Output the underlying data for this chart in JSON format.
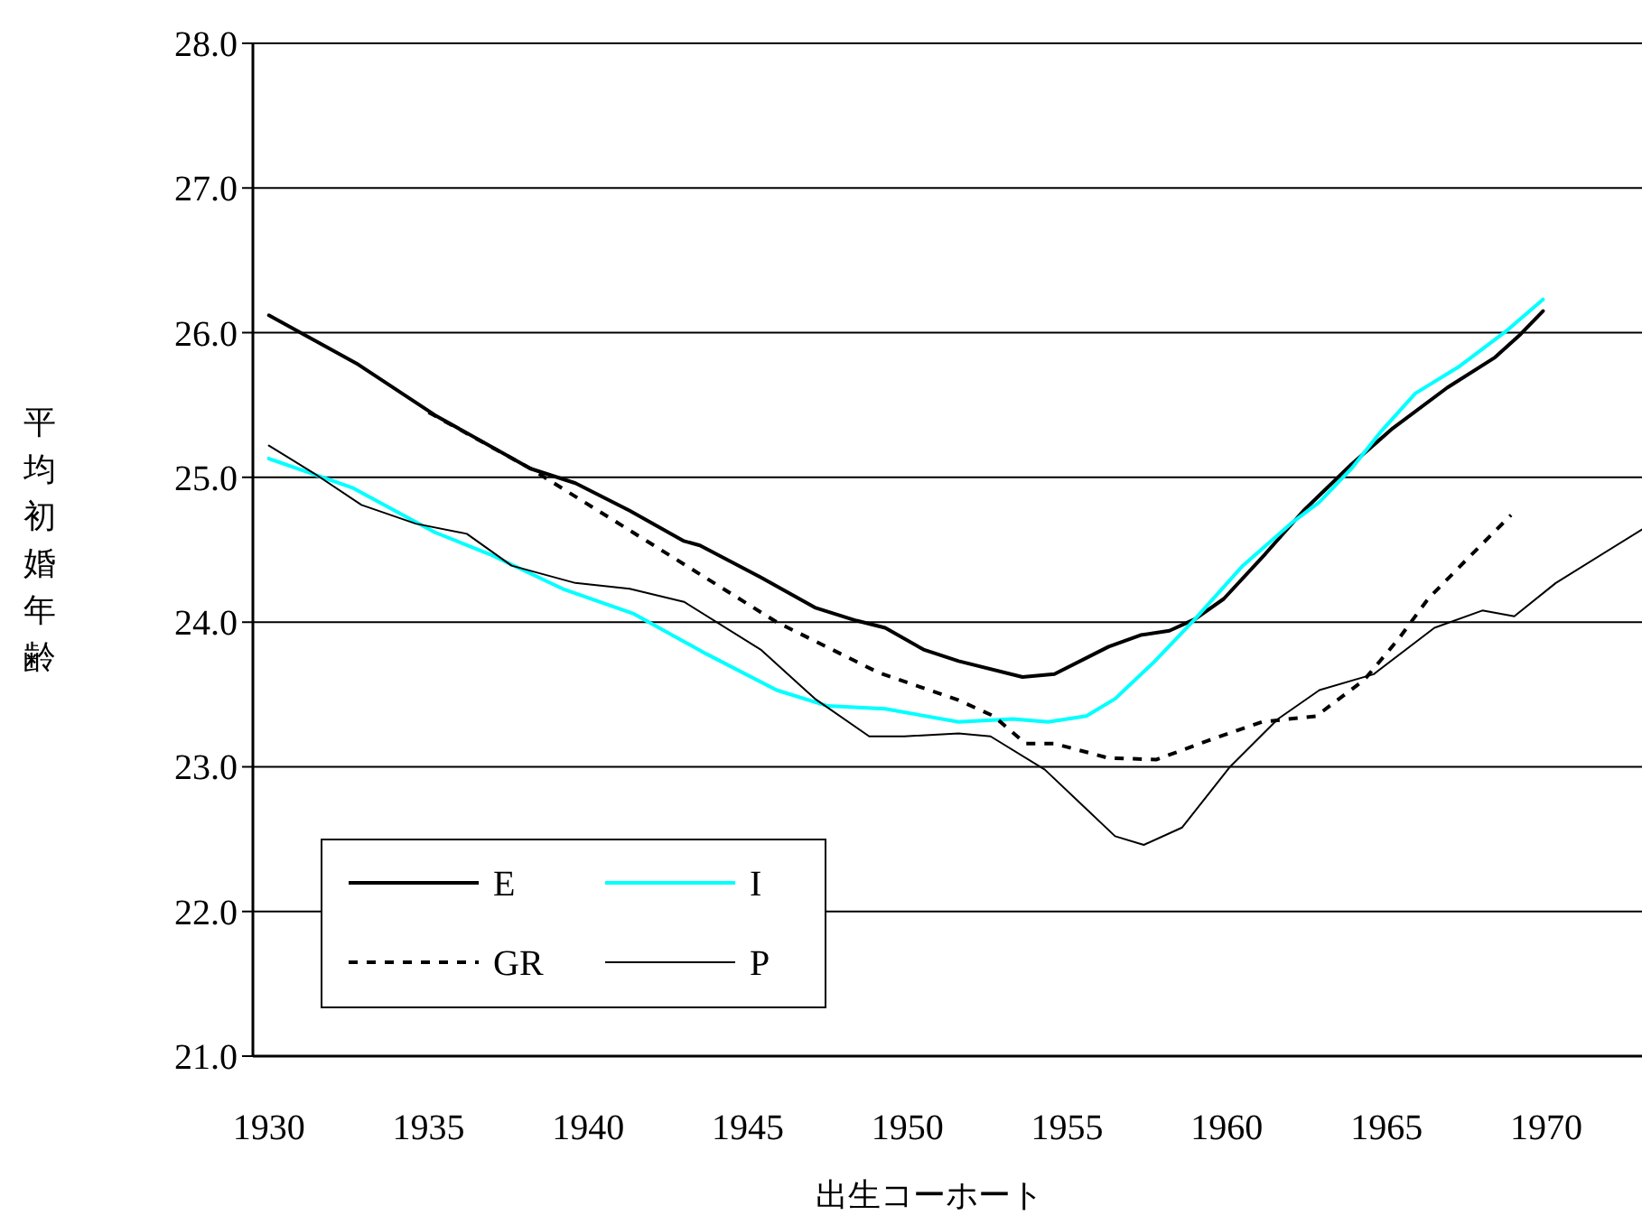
{
  "chart_data": {
    "type": "line",
    "xlabel": "出生コーホート",
    "ylabel": "平均初婚年齢",
    "xlim": [
      1929.5,
      1973
    ],
    "ylim": [
      21,
      28
    ],
    "xticks": [
      1930,
      1935,
      1940,
      1945,
      1950,
      1955,
      1960,
      1965,
      1970
    ],
    "yticks": [
      {
        "value": 21,
        "label": "21.0"
      },
      {
        "value": 22,
        "label": "22.0"
      },
      {
        "value": 23,
        "label": "23.0"
      },
      {
        "value": 24,
        "label": "24.0"
      },
      {
        "value": 25,
        "label": "25.0"
      },
      {
        "value": 26,
        "label": "26.0"
      },
      {
        "value": 27,
        "label": "27.0"
      },
      {
        "value": 28,
        "label": "28.0"
      }
    ],
    "grid": "y",
    "legend": "bottom left",
    "marker": "none",
    "series": [
      {
        "name": "E",
        "color": "#000000",
        "line_style": "solid",
        "x": [
          1930,
          1932.8,
          1935.2,
          1938.2,
          1939.6,
          1941.3,
          1943.0,
          1943.5,
          1945.4,
          1947.1,
          1948.4,
          1949.3,
          1950.5,
          1951.6,
          1953.6,
          1954.6,
          1956.3,
          1957.3,
          1958.2,
          1959.0,
          1959.9,
          1961.2,
          1962.4,
          1963.9,
          1965.2,
          1966.9,
          1968.4,
          1969.2,
          1969.9
        ],
        "values": [
          26.12,
          25.78,
          25.43,
          25.06,
          24.96,
          24.77,
          24.56,
          24.53,
          24.31,
          24.1,
          24.01,
          23.96,
          23.81,
          23.73,
          23.62,
          23.64,
          23.83,
          23.91,
          23.94,
          24.02,
          24.16,
          24.47,
          24.77,
          25.09,
          25.34,
          25.62,
          25.83,
          25.99,
          26.15
        ]
      },
      {
        "name": "I",
        "color": "#00ffff",
        "line_style": "solid",
        "x": [
          1930,
          1932.6,
          1935.2,
          1936.9,
          1939.2,
          1941.4,
          1943.7,
          1945.9,
          1947.5,
          1949.3,
          1951.6,
          1953.3,
          1954.4,
          1955.6,
          1956.5,
          1957.7,
          1959.0,
          1960.5,
          1962.0,
          1962.9,
          1963.9,
          1964.8,
          1965.9,
          1967.3,
          1968.8,
          1969.9
        ],
        "values": [
          25.13,
          24.93,
          24.62,
          24.47,
          24.23,
          24.06,
          23.78,
          23.53,
          23.42,
          23.4,
          23.31,
          23.33,
          23.31,
          23.35,
          23.47,
          23.72,
          24.02,
          24.39,
          24.68,
          24.83,
          25.06,
          25.31,
          25.58,
          25.77,
          26.02,
          26.23
        ]
      },
      {
        "name": "GR",
        "color": "#000000",
        "line_style": "dashed",
        "x": [
          1935,
          1938.2,
          1941.4,
          1945.9,
          1949.1,
          1951.6,
          1952.7,
          1953.7,
          1954.6,
          1956.3,
          1957.8,
          1959.4,
          1961.1,
          1962.8,
          1964.3,
          1965.4,
          1966.3,
          1967.5,
          1968.9
        ],
        "values": [
          25.45,
          25.06,
          24.62,
          24.0,
          23.65,
          23.46,
          23.35,
          23.16,
          23.16,
          23.06,
          23.05,
          23.18,
          23.31,
          23.35,
          23.6,
          23.89,
          24.16,
          24.43,
          24.74
        ]
      },
      {
        "name": "P",
        "color": "#000000",
        "line_style": "solid",
        "x": [
          1930,
          1931.4,
          1932.9,
          1934.6,
          1936.2,
          1937.6,
          1939.6,
          1941.3,
          1943.0,
          1945.4,
          1947.1,
          1948.8,
          1949.9,
          1951.6,
          1952.6,
          1954.3,
          1955.4,
          1956.5,
          1957.4,
          1958.6,
          1960.1,
          1961.6,
          1962.9,
          1964.6,
          1966.5,
          1968.0,
          1969.0,
          1970.3,
          1973.0
        ],
        "values": [
          25.22,
          25.03,
          24.81,
          24.68,
          24.61,
          24.39,
          24.27,
          24.23,
          24.14,
          23.81,
          23.47,
          23.21,
          23.21,
          23.23,
          23.21,
          22.98,
          22.75,
          22.52,
          22.46,
          22.58,
          23.0,
          23.33,
          23.53,
          23.64,
          23.96,
          24.08,
          24.04,
          24.27,
          24.64
        ]
      }
    ]
  }
}
